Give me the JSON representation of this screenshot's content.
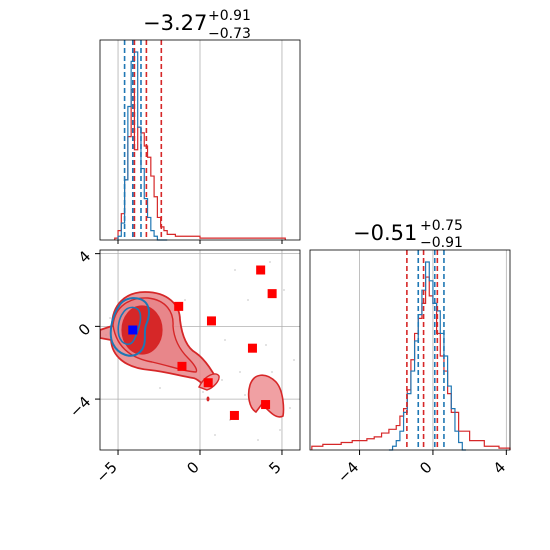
{
  "colors": {
    "red": "#d62728",
    "blue": "#1f77b4",
    "red_fill": "#e8868a",
    "red_fill_dark": "#d62728",
    "grid": "#b0b0b0",
    "marker_red": "#ff0000",
    "marker_blue": "#0000ff"
  },
  "chart_data": [
    {
      "panel": "param1-marginal",
      "type": "histogram",
      "title": {
        "value": "−3.27",
        "upper": "+0.91",
        "lower": "−0.73"
      },
      "xlim": [
        -6.1,
        6.1
      ],
      "grid": true,
      "vlines": {
        "red": [
          -4.0,
          -3.27,
          -2.36
        ],
        "blue": [
          -4.6,
          -4.1,
          -3.6
        ]
      },
      "series": [
        {
          "color": "blue",
          "x": [
            -5.0,
            -4.8,
            -4.6,
            -4.4,
            -4.2,
            -4.0,
            -3.8,
            -3.6,
            -3.4,
            -3.2,
            -3.0,
            -2.8,
            -2.6,
            -2.4,
            -2.2
          ],
          "y": [
            0.02,
            0.09,
            0.32,
            0.71,
            0.95,
            1.0,
            0.6,
            0.38,
            0.22,
            0.12,
            0.05,
            0.02,
            0.0,
            0.0,
            0.0
          ]
        },
        {
          "color": "red",
          "x": [
            -5.2,
            -5.0,
            -4.8,
            -4.6,
            -4.4,
            -4.2,
            -4.0,
            -3.8,
            -3.6,
            -3.4,
            -3.2,
            -3.0,
            -2.8,
            -2.6,
            -2.4,
            -2.2,
            -2.0,
            -1.8,
            -1.5,
            -1.0,
            0.0,
            1.0,
            2.0,
            3.0,
            4.0,
            5.0
          ],
          "y": [
            0.01,
            0.05,
            0.14,
            0.32,
            0.55,
            0.8,
            0.48,
            0.6,
            0.57,
            0.5,
            0.44,
            0.34,
            0.23,
            0.12,
            0.07,
            0.05,
            0.03,
            0.03,
            0.02,
            0.02,
            0.01,
            0.01,
            0.01,
            0.01,
            0.01,
            0.01
          ]
        }
      ]
    },
    {
      "panel": "param2-marginal",
      "type": "histogram",
      "title": {
        "value": "−0.51",
        "upper": "+0.75",
        "lower": "−0.91"
      },
      "xlim": [
        -6.7,
        4.2
      ],
      "xticks": [
        -4,
        0,
        4
      ],
      "xtick_labels": [
        "−4",
        "0",
        "4"
      ],
      "grid": true,
      "vlines": {
        "red": [
          -1.42,
          -0.51,
          0.24
        ],
        "blue": [
          -0.8,
          0.1,
          0.6
        ]
      },
      "series": [
        {
          "color": "blue",
          "x": [
            -2.4,
            -2.2,
            -2.0,
            -1.8,
            -1.6,
            -1.4,
            -1.2,
            -1.0,
            -0.8,
            -0.6,
            -0.4,
            -0.2,
            0.0,
            0.2,
            0.4,
            0.6,
            0.8,
            1.0,
            1.2,
            1.4,
            1.6
          ],
          "y": [
            0.0,
            0.02,
            0.05,
            0.1,
            0.2,
            0.3,
            0.42,
            0.58,
            0.72,
            0.85,
            1.0,
            0.9,
            0.78,
            0.74,
            0.62,
            0.5,
            0.34,
            0.22,
            0.1,
            0.04,
            0.0
          ]
        },
        {
          "color": "red",
          "x": [
            -6.6,
            -6.0,
            -5.0,
            -4.4,
            -4.0,
            -3.6,
            -3.2,
            -2.8,
            -2.4,
            -2.0,
            -1.8,
            -1.6,
            -1.4,
            -1.2,
            -1.0,
            -0.8,
            -0.6,
            -0.4,
            -0.2,
            0.0,
            0.2,
            0.4,
            0.6,
            0.8,
            1.0,
            1.4,
            2.0,
            2.8,
            3.6
          ],
          "y": [
            0.02,
            0.03,
            0.04,
            0.05,
            0.05,
            0.06,
            0.07,
            0.09,
            0.11,
            0.13,
            0.18,
            0.22,
            0.32,
            0.48,
            0.62,
            0.7,
            0.78,
            0.92,
            0.82,
            0.78,
            0.62,
            0.5,
            0.42,
            0.3,
            0.2,
            0.1,
            0.05,
            0.02,
            0.01
          ]
        }
      ]
    },
    {
      "panel": "joint",
      "type": "scatter",
      "xlim": [
        -6.1,
        6.1
      ],
      "ylim": [
        -6.8,
        4.2
      ],
      "xticks": [
        -5,
        0,
        5
      ],
      "xtick_labels": [
        "−5",
        "0",
        "5"
      ],
      "yticks": [
        -4,
        0,
        4
      ],
      "ytick_labels": [
        "−4",
        "0",
        "4"
      ],
      "grid": true,
      "red_markers": {
        "x": [
          -1.3,
          0.7,
          3.7,
          4.4,
          -1.1,
          0.5,
          3.2,
          2.1,
          4.0
        ],
        "y": [
          1.1,
          0.3,
          3.1,
          1.8,
          -2.2,
          -3.1,
          -1.2,
          -4.9,
          -4.3
        ]
      },
      "blue_markers": {
        "x": [
          -4.1
        ],
        "y": [
          -0.2
        ]
      }
    }
  ]
}
